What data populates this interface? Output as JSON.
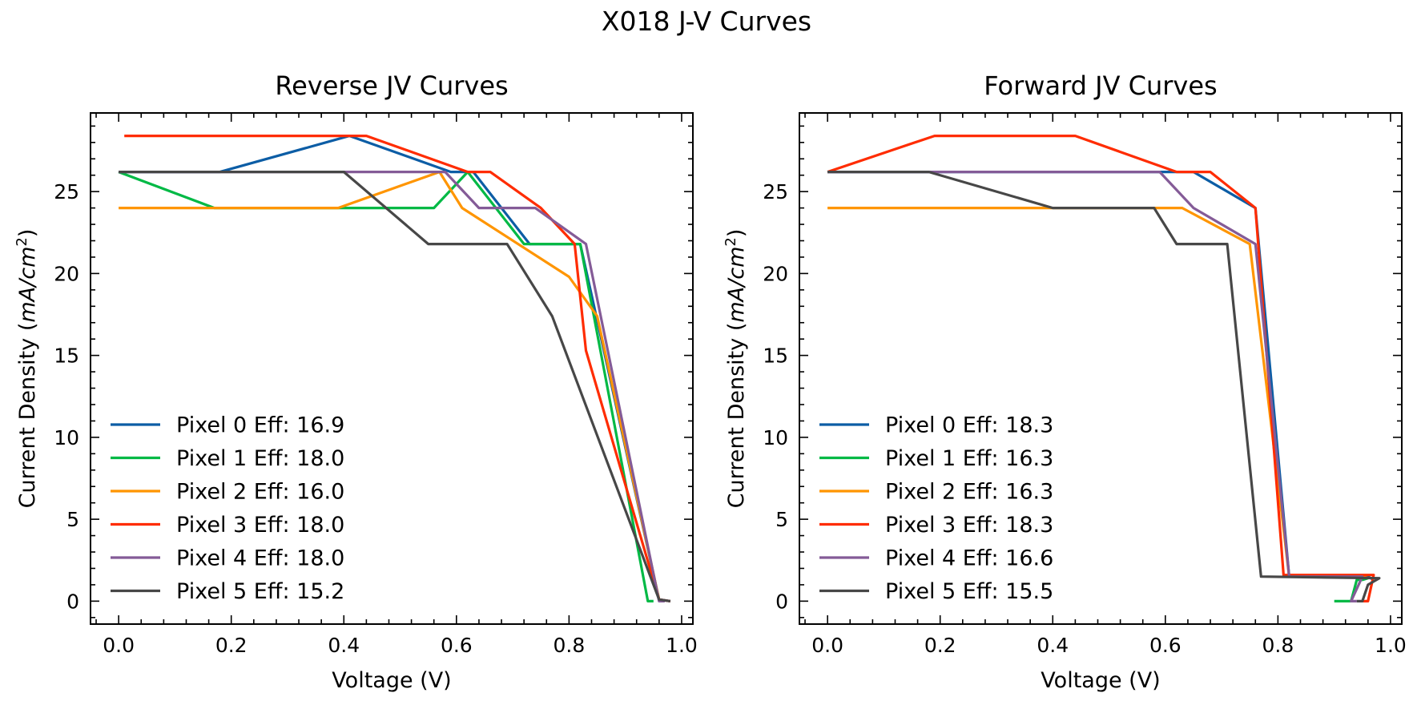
{
  "figure_title": "X018 J-V Curves",
  "chart_data": [
    {
      "type": "line",
      "title": "Reverse JV Curves",
      "xlabel": "Voltage (V)",
      "ylabel_main": "Current Density (",
      "ylabel_unit_num": "mA/cm",
      "ylabel_unit_exp": "2",
      "ylabel_close": ")",
      "xlim": [
        -0.05,
        1.02
      ],
      "ylim": [
        -1.4,
        29.8
      ],
      "xticks": [
        0.0,
        0.2,
        0.4,
        0.6,
        0.8,
        1.0
      ],
      "xtick_labels": [
        "0.0",
        "0.2",
        "0.4",
        "0.6",
        "0.8",
        "1.0"
      ],
      "yticks": [
        0,
        5,
        10,
        15,
        20,
        25
      ],
      "ytick_labels": [
        "0",
        "5",
        "10",
        "15",
        "20",
        "25"
      ],
      "grid": false,
      "legend_position": "lower-left",
      "series": [
        {
          "name": "Pixel 0 Eff: 16.9",
          "color": "#0c5da5",
          "points": [
            [
              0.0,
              26.2
            ],
            [
              0.18,
              26.2
            ],
            [
              0.41,
              28.4
            ],
            [
              0.59,
              26.2
            ],
            [
              0.63,
              26.2
            ],
            [
              0.73,
              21.8
            ],
            [
              0.82,
              21.8
            ],
            [
              0.96,
              0.1
            ],
            [
              0.98,
              0.0
            ]
          ]
        },
        {
          "name": "Pixel 1 Eff: 18.0",
          "color": "#00b945",
          "points": [
            [
              0.0,
              26.2
            ],
            [
              0.17,
              24.0
            ],
            [
              0.56,
              24.0
            ],
            [
              0.62,
              26.2
            ],
            [
              0.72,
              21.8
            ],
            [
              0.82,
              21.8
            ],
            [
              0.94,
              0.0
            ],
            [
              0.95,
              0.0
            ]
          ]
        },
        {
          "name": "Pixel 2 Eff: 16.0",
          "color": "#ff9500",
          "points": [
            [
              0.0,
              24.0
            ],
            [
              0.39,
              24.0
            ],
            [
              0.57,
              26.2
            ],
            [
              0.61,
              24.0
            ],
            [
              0.8,
              19.8
            ],
            [
              0.85,
              17.4
            ],
            [
              0.96,
              0.1
            ],
            [
              0.97,
              0.0
            ]
          ]
        },
        {
          "name": "Pixel 3 Eff: 18.0",
          "color": "#ff2c00",
          "points": [
            [
              0.01,
              28.4
            ],
            [
              0.44,
              28.4
            ],
            [
              0.62,
              26.2
            ],
            [
              0.66,
              26.2
            ],
            [
              0.75,
              24.0
            ],
            [
              0.81,
              21.8
            ],
            [
              0.83,
              15.3
            ],
            [
              0.96,
              0.1
            ],
            [
              0.98,
              0.0
            ]
          ]
        },
        {
          "name": "Pixel 4 Eff: 18.0",
          "color": "#845b97",
          "points": [
            [
              0.0,
              26.2
            ],
            [
              0.58,
              26.2
            ],
            [
              0.64,
              24.0
            ],
            [
              0.74,
              24.0
            ],
            [
              0.83,
              21.8
            ],
            [
              0.96,
              0.0
            ],
            [
              0.97,
              0.0
            ]
          ]
        },
        {
          "name": "Pixel 5 Eff: 15.2",
          "color": "#474747",
          "points": [
            [
              0.0,
              26.2
            ],
            [
              0.4,
              26.2
            ],
            [
              0.55,
              21.8
            ],
            [
              0.69,
              21.8
            ],
            [
              0.77,
              17.4
            ],
            [
              0.96,
              0.1
            ],
            [
              0.98,
              0.0
            ]
          ]
        }
      ]
    },
    {
      "type": "line",
      "title": "Forward JV Curves",
      "xlabel": "Voltage (V)",
      "ylabel_main": "Current Density (",
      "ylabel_unit_num": "mA/cm",
      "ylabel_unit_exp": "2",
      "ylabel_close": ")",
      "xlim": [
        -0.05,
        1.02
      ],
      "ylim": [
        -1.4,
        29.8
      ],
      "xticks": [
        0.0,
        0.2,
        0.4,
        0.6,
        0.8,
        1.0
      ],
      "xtick_labels": [
        "0.0",
        "0.2",
        "0.4",
        "0.6",
        "0.8",
        "1.0"
      ],
      "yticks": [
        0,
        5,
        10,
        15,
        20,
        25
      ],
      "ytick_labels": [
        "0",
        "5",
        "10",
        "15",
        "20",
        "25"
      ],
      "grid": false,
      "legend_position": "lower-left",
      "series": [
        {
          "name": "Pixel 0 Eff: 18.3",
          "color": "#0c5da5",
          "points": [
            [
              0.0,
              26.2
            ],
            [
              0.65,
              26.2
            ],
            [
              0.76,
              24.0
            ],
            [
              0.82,
              1.5
            ],
            [
              0.96,
              1.5
            ],
            [
              0.97,
              1.3
            ]
          ]
        },
        {
          "name": "Pixel 1 Eff: 16.3",
          "color": "#00b945",
          "points": [
            [
              0.9,
              0.0
            ],
            [
              0.93,
              0.0
            ],
            [
              0.94,
              1.3
            ],
            [
              0.95,
              1.3
            ],
            [
              0.96,
              1.4
            ]
          ]
        },
        {
          "name": "Pixel 2 Eff: 16.3",
          "color": "#ff9500",
          "points": [
            [
              0.0,
              24.0
            ],
            [
              0.63,
              24.0
            ],
            [
              0.75,
              21.8
            ],
            [
              0.82,
              1.5
            ],
            [
              0.95,
              1.5
            ],
            [
              0.96,
              1.4
            ]
          ]
        },
        {
          "name": "Pixel 3 Eff: 18.3",
          "color": "#ff2c00",
          "points": [
            [
              0.0,
              26.2
            ],
            [
              0.19,
              28.4
            ],
            [
              0.44,
              28.4
            ],
            [
              0.62,
              26.2
            ],
            [
              0.68,
              26.2
            ],
            [
              0.76,
              24.0
            ],
            [
              0.81,
              1.6
            ],
            [
              0.97,
              1.6
            ],
            [
              0.96,
              0.0
            ],
            [
              0.95,
              0.0
            ]
          ]
        },
        {
          "name": "Pixel 4 Eff: 16.6",
          "color": "#845b97",
          "points": [
            [
              0.0,
              26.2
            ],
            [
              0.59,
              26.2
            ],
            [
              0.65,
              24.0
            ],
            [
              0.76,
              21.8
            ],
            [
              0.82,
              1.5
            ],
            [
              0.95,
              1.5
            ],
            [
              0.93,
              0.0
            ],
            [
              0.94,
              0.0
            ]
          ]
        },
        {
          "name": "Pixel 5 Eff: 15.5",
          "color": "#474747",
          "points": [
            [
              0.0,
              26.2
            ],
            [
              0.18,
              26.2
            ],
            [
              0.4,
              24.0
            ],
            [
              0.58,
              24.0
            ],
            [
              0.62,
              21.8
            ],
            [
              0.71,
              21.8
            ],
            [
              0.77,
              1.5
            ],
            [
              0.98,
              1.4
            ],
            [
              0.96,
              1.0
            ],
            [
              0.95,
              0.0
            ],
            [
              0.94,
              0.0
            ]
          ]
        }
      ]
    }
  ]
}
